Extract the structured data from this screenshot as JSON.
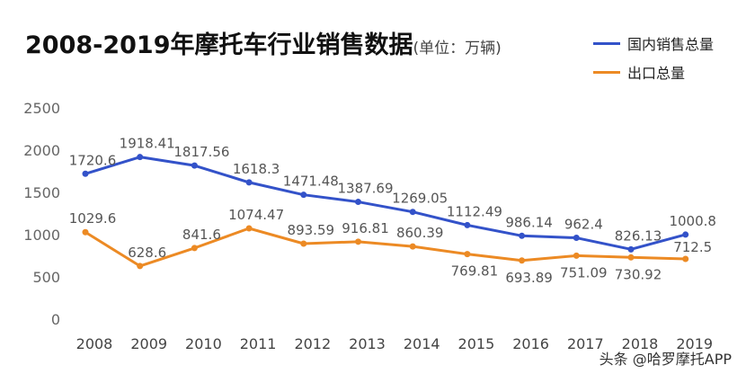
{
  "chart_data": {
    "type": "line",
    "title": "2008-2019年摩托车行业销售数据",
    "unit_note": "(单位：万辆)",
    "categories": [
      "2008",
      "2009",
      "2010",
      "2011",
      "2012",
      "2013",
      "2014",
      "2015",
      "2016",
      "2017",
      "2018",
      "2019"
    ],
    "ylim": [
      0,
      2500
    ],
    "yticks": [
      0,
      500,
      1000,
      1500,
      2000,
      2500
    ],
    "grid": false,
    "legend_position": "top-right",
    "series": [
      {
        "name": "国内销售总量",
        "color": "#3352c9",
        "values": [
          1720.6,
          1918.41,
          1817.56,
          1618.3,
          1471.48,
          1387.69,
          1269.05,
          1112.49,
          986.14,
          962.4,
          826.13,
          1000.8
        ]
      },
      {
        "name": "出口总量",
        "color": "#ec8a24",
        "values": [
          1029.6,
          628.6,
          841.6,
          1074.47,
          893.59,
          916.81,
          860.39,
          769.81,
          693.89,
          751.09,
          730.92,
          712.5
        ]
      }
    ]
  },
  "credit": "头条 @哈罗摩托APP"
}
